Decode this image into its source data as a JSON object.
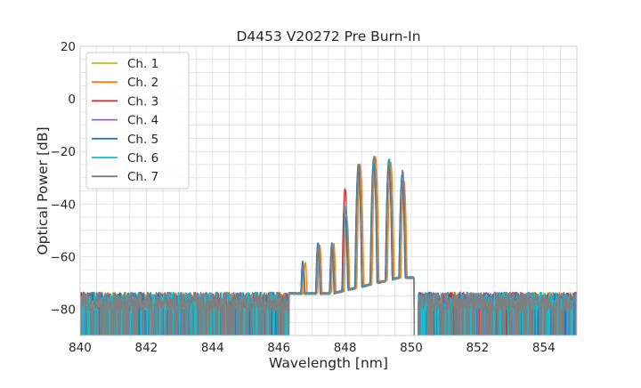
{
  "chart_data": {
    "type": "line",
    "title": "D4453 V20272 Pre Burn-In",
    "xlabel": "Wavelength [nm]",
    "ylabel": "Optical Power [dB]",
    "xlim": [
      840,
      855
    ],
    "ylim": [
      -90,
      20
    ],
    "x_ticks": [
      840,
      842,
      844,
      846,
      848,
      850,
      852,
      854
    ],
    "x_tick_labels": [
      "840",
      "842",
      "844",
      "846",
      "848",
      "850",
      "852",
      "854"
    ],
    "y_ticks": [
      -80,
      -60,
      -40,
      -20,
      0,
      20
    ],
    "y_tick_labels": [
      "−80",
      "−60",
      "−40",
      "−20",
      "0",
      "20"
    ],
    "grid": true,
    "legend_position": "top-left",
    "noise_floor_db": -77,
    "series": [
      {
        "name": "Ch. 1",
        "color": "#bcbd22",
        "peaks": [
          [
            846.75,
            -64
          ],
          [
            847.2,
            -57
          ],
          [
            847.62,
            -55
          ],
          [
            848.02,
            -45
          ],
          [
            848.42,
            -26
          ],
          [
            848.86,
            -23
          ],
          [
            849.32,
            -24
          ],
          [
            849.72,
            -32
          ]
        ]
      },
      {
        "name": "Ch. 2",
        "color": "#ff7f0e",
        "peaks": [
          [
            846.8,
            -62
          ],
          [
            847.24,
            -56
          ],
          [
            847.66,
            -55
          ],
          [
            848.06,
            -46
          ],
          [
            848.46,
            -25
          ],
          [
            848.92,
            -22
          ],
          [
            849.38,
            -24
          ],
          [
            849.78,
            -31
          ]
        ]
      },
      {
        "name": "Ch. 3",
        "color": "#d62728",
        "peaks": [
          [
            846.72,
            -62
          ],
          [
            847.18,
            -55
          ],
          [
            847.6,
            -55
          ],
          [
            848.0,
            -34
          ],
          [
            848.4,
            -25
          ],
          [
            848.88,
            -22
          ],
          [
            849.32,
            -23
          ],
          [
            849.72,
            -31
          ]
        ]
      },
      {
        "name": "Ch. 4",
        "color": "#9467bd",
        "peaks": [
          [
            846.74,
            -63
          ],
          [
            847.2,
            -56
          ],
          [
            847.62,
            -56
          ],
          [
            848.02,
            -41
          ],
          [
            848.42,
            -26
          ],
          [
            848.88,
            -23
          ],
          [
            849.34,
            -24
          ],
          [
            849.74,
            -27
          ]
        ]
      },
      {
        "name": "Ch. 5",
        "color": "#1f77b4",
        "peaks": [
          [
            846.72,
            -62
          ],
          [
            847.18,
            -55
          ],
          [
            847.6,
            -55
          ],
          [
            848.0,
            -45
          ],
          [
            848.4,
            -25
          ],
          [
            848.86,
            -23
          ],
          [
            849.32,
            -24
          ],
          [
            849.72,
            -29
          ]
        ]
      },
      {
        "name": "Ch. 6",
        "color": "#17becf",
        "peaks": [
          [
            846.74,
            -63
          ],
          [
            847.2,
            -56
          ],
          [
            847.62,
            -55
          ],
          [
            848.02,
            -40
          ],
          [
            848.42,
            -25
          ],
          [
            848.88,
            -23
          ],
          [
            849.34,
            -23
          ],
          [
            849.74,
            -30
          ]
        ]
      },
      {
        "name": "Ch. 7",
        "color": "#7f7f7f",
        "peaks": [
          [
            846.74,
            -63
          ],
          [
            847.2,
            -55
          ],
          [
            847.62,
            -55
          ],
          [
            848.02,
            -42
          ],
          [
            848.42,
            -25
          ],
          [
            848.88,
            -22
          ],
          [
            849.34,
            -24
          ],
          [
            849.74,
            -31
          ]
        ]
      }
    ]
  }
}
